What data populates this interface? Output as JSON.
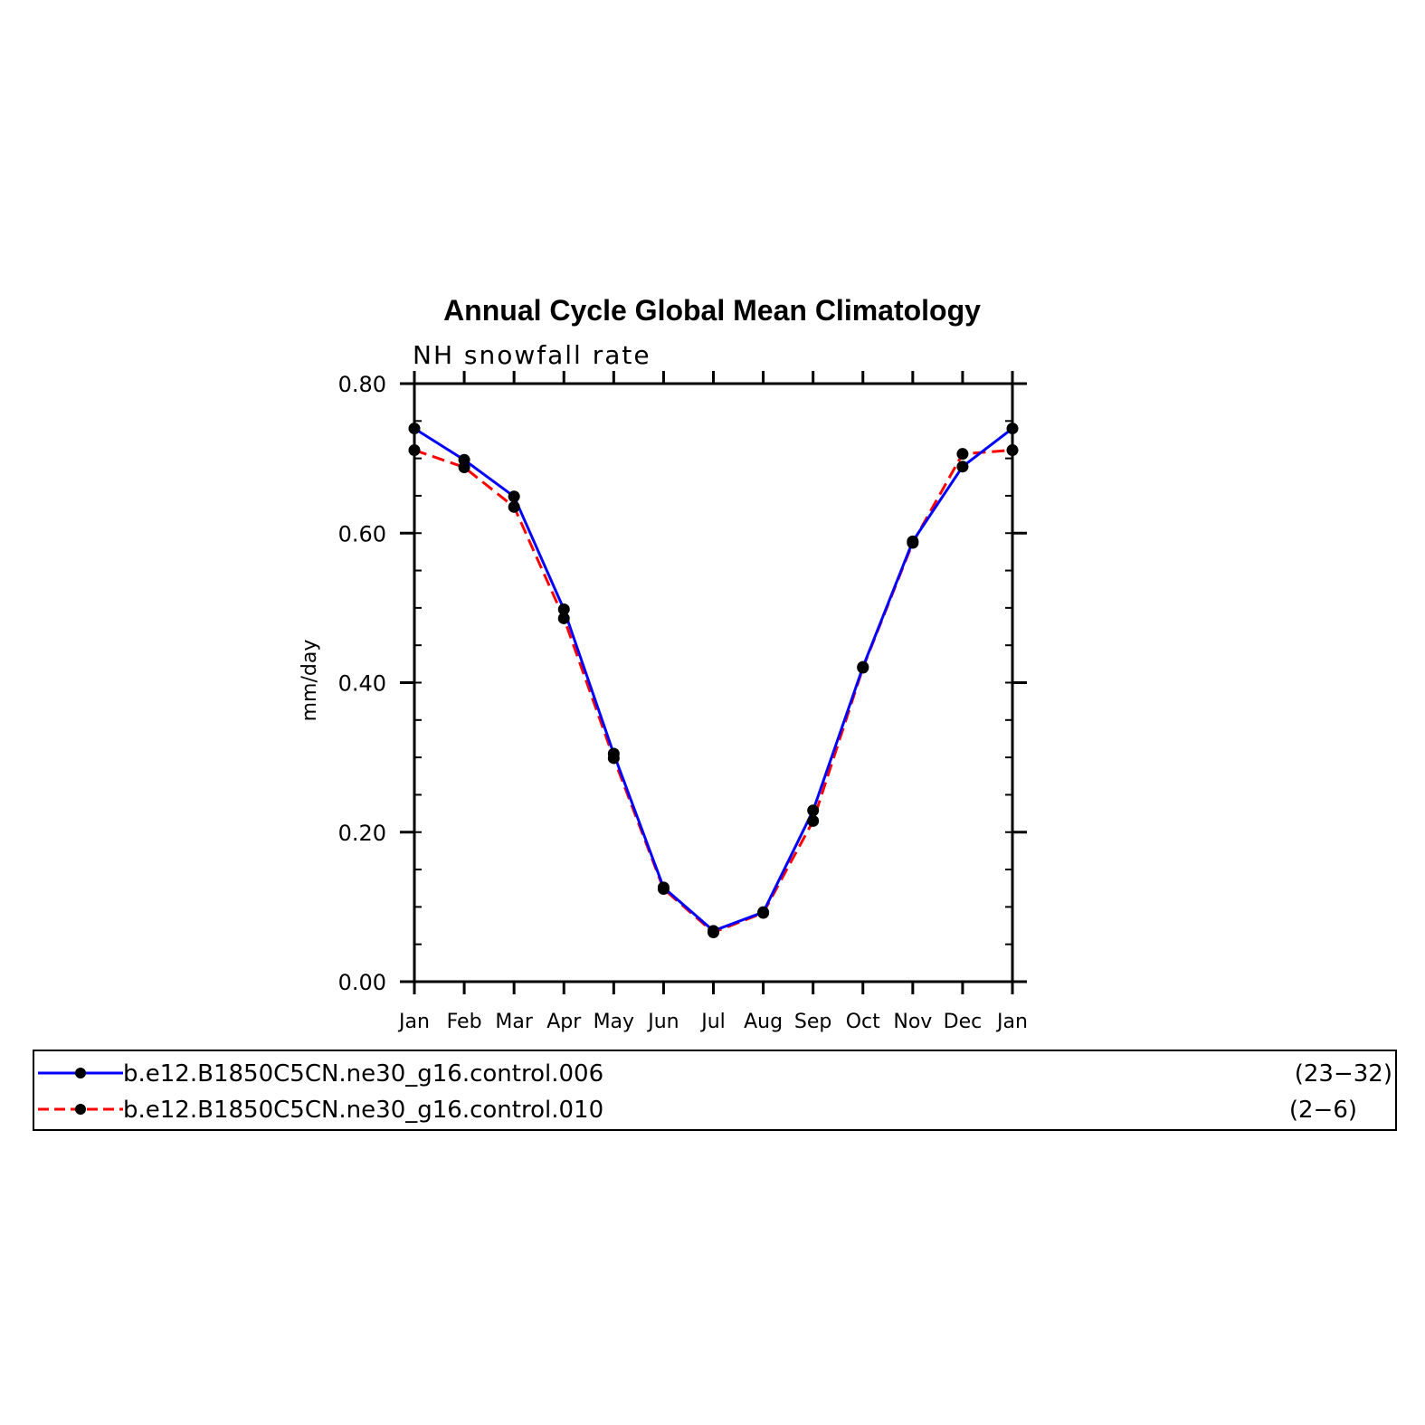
{
  "chart_data": {
    "type": "line",
    "title": "Annual Cycle Global Mean Climatology",
    "subtitle": "NH snowfall rate",
    "ylabel": "mm/day",
    "xlabel": "",
    "ylim": [
      0,
      0.8
    ],
    "yticks": [
      "0.00",
      "0.20",
      "0.40",
      "0.60",
      "0.80"
    ],
    "categories": [
      "Jan",
      "Feb",
      "Mar",
      "Apr",
      "May",
      "Jun",
      "Jul",
      "Aug",
      "Sep",
      "Oct",
      "Nov",
      "Dec",
      "Jan"
    ],
    "grid": false,
    "legend_placement": "bottom",
    "series": [
      {
        "name": "b.e12.B1850C5CN.ne30_g16.control.006",
        "years": "(23−32)",
        "color": "#0000ff",
        "dash": "solid",
        "values": [
          0.74,
          0.698,
          0.649,
          0.498,
          0.305,
          0.126,
          0.068,
          0.093,
          0.229,
          0.421,
          0.589,
          0.689,
          0.74
        ]
      },
      {
        "name": "b.e12.B1850C5CN.ne30_g16.control.010",
        "years": "(2−6)",
        "color": "#ff0000",
        "dash": "dashed",
        "values": [
          0.711,
          0.688,
          0.635,
          0.486,
          0.299,
          0.124,
          0.066,
          0.092,
          0.215,
          0.42,
          0.587,
          0.706,
          0.711
        ]
      }
    ]
  }
}
